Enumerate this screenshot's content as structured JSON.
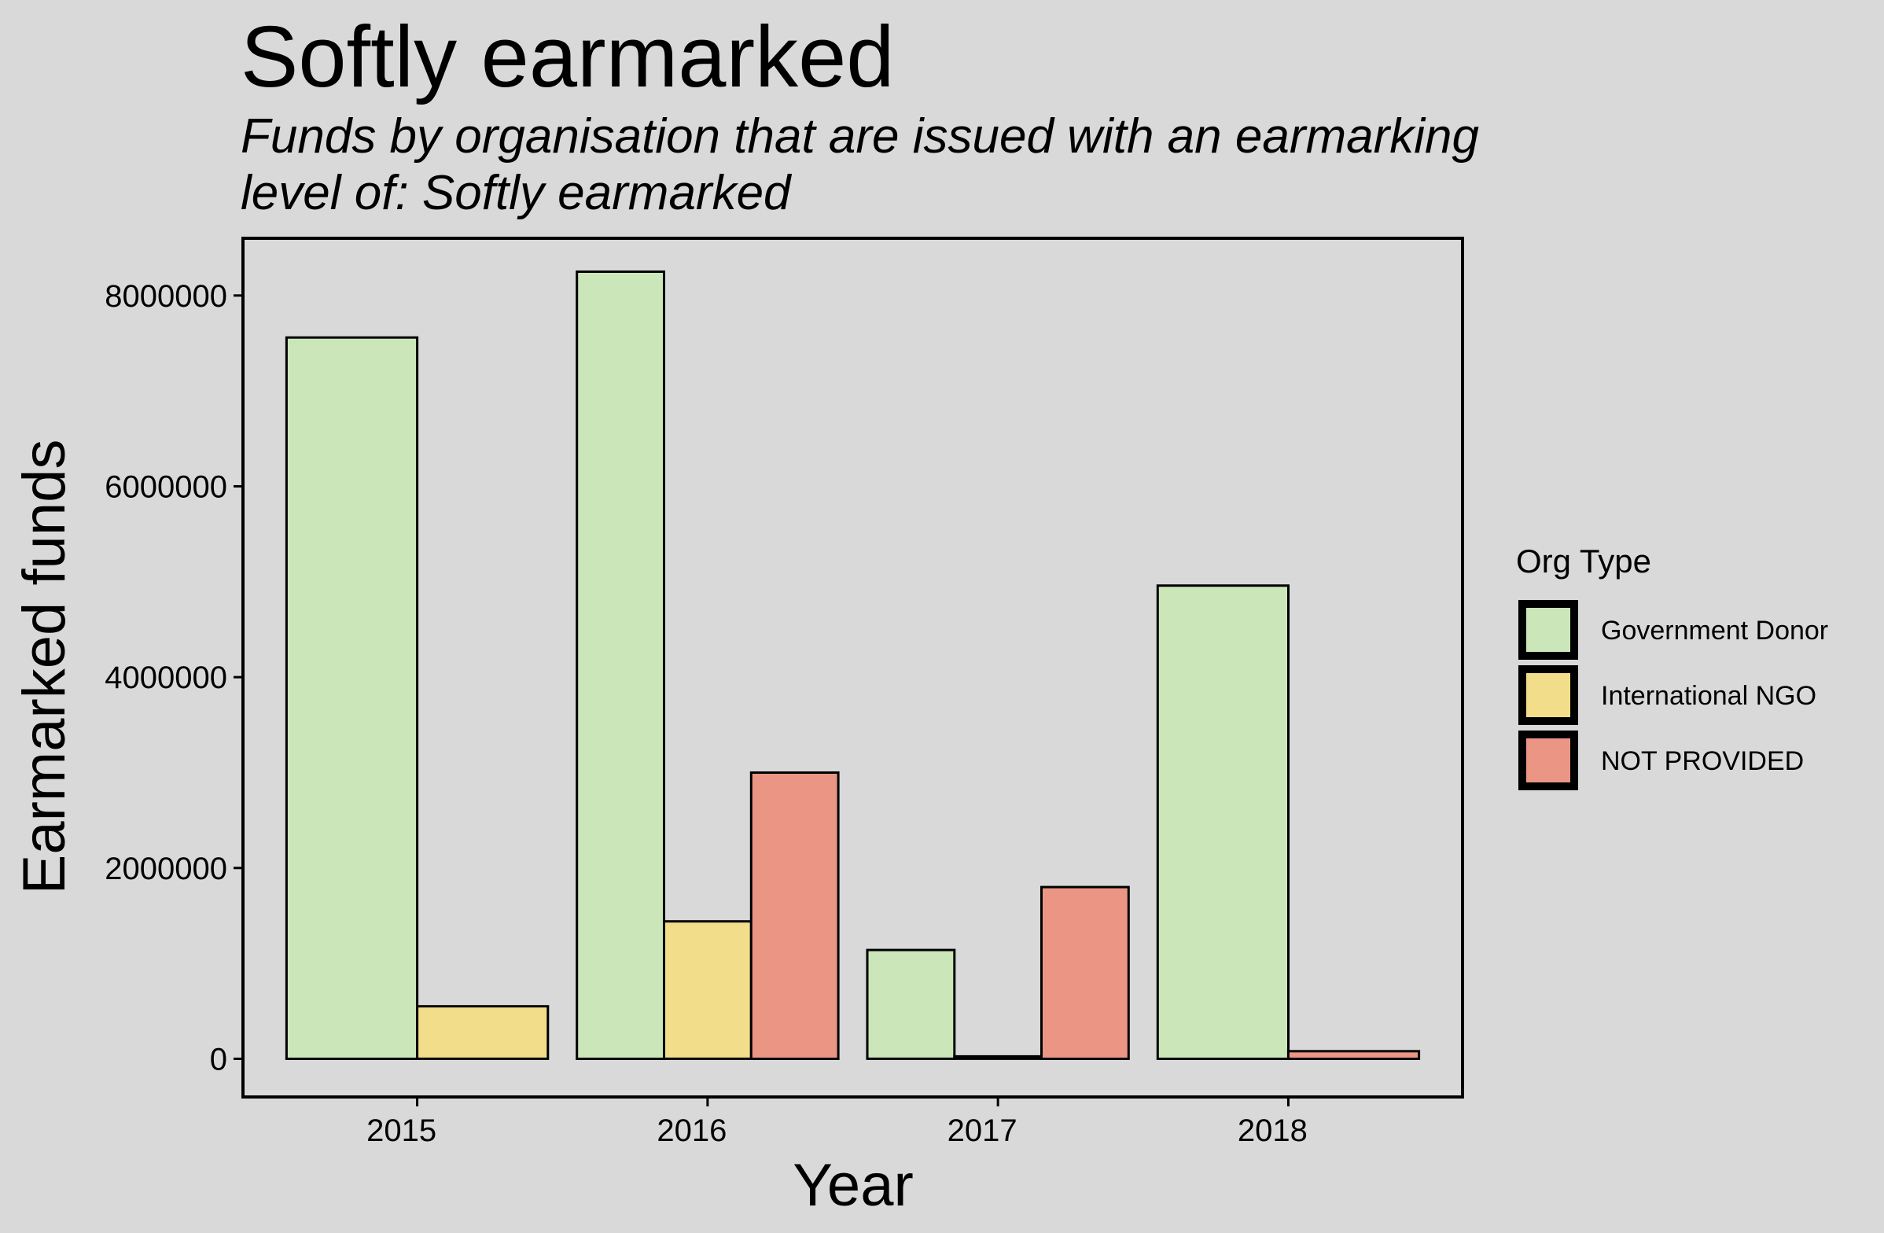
{
  "chart_data": {
    "type": "bar",
    "title": "Softly earmarked",
    "subtitle_lines": [
      "Funds by organisation that are issued with an earmarking",
      "level of: Softly earmarked"
    ],
    "xlabel": "Year",
    "ylabel": "Earmarked funds",
    "categories": [
      "2015",
      "2016",
      "2017",
      "2018"
    ],
    "ylim": [
      -400000,
      8600000
    ],
    "yticks": [
      0,
      2000000,
      4000000,
      6000000,
      8000000
    ],
    "ytick_labels": [
      "0",
      "2000000",
      "4000000",
      "6000000",
      "8000000"
    ],
    "legend_title": "Org Type",
    "legend_position": "right",
    "grid": false,
    "bar_outline_color": "#000000",
    "series": [
      {
        "name": "Government Donor",
        "color": "#cbe6b8",
        "values": [
          7560000,
          8250000,
          1140000,
          4960000
        ]
      },
      {
        "name": "International NGO",
        "color": "#f2de8a",
        "values": [
          550000,
          1440000,
          25000,
          null
        ]
      },
      {
        "name": "NOT PROVIDED",
        "color": "#eb9585",
        "values": [
          null,
          3000000,
          1800000,
          80000
        ]
      }
    ]
  }
}
